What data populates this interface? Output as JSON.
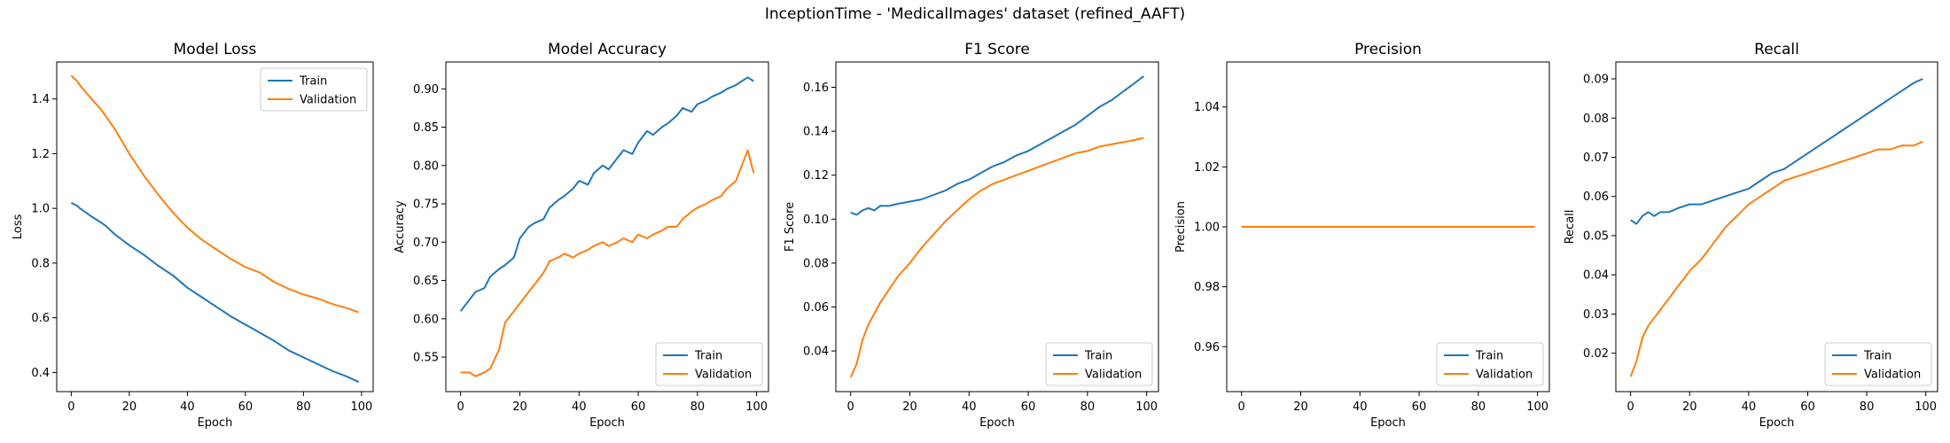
{
  "figure_title": "InceptionTime - 'MedicalImages' dataset (refined_AAFT)",
  "colors": {
    "train": "#1f77b4",
    "validation": "#ff7f0e"
  },
  "chart_data": [
    {
      "type": "line",
      "title": "Model Loss",
      "xlabel": "Epoch",
      "ylabel": "Loss",
      "xlim": [
        -5,
        104
      ],
      "ylim": [
        0.33,
        1.535
      ],
      "xticks": [
        0,
        20,
        40,
        60,
        80,
        100
      ],
      "yticks": [
        0.4,
        0.6,
        0.8,
        1.0,
        1.2,
        1.4
      ],
      "legend_position": "upper right",
      "x_points": [
        0,
        2,
        3,
        5,
        7,
        10,
        12,
        15,
        20,
        25,
        30,
        35,
        40,
        45,
        50,
        55,
        60,
        65,
        70,
        75,
        80,
        85,
        90,
        95,
        99
      ],
      "series": [
        {
          "name": "Train",
          "color_key": "train",
          "y_points": [
            1.02,
            1.01,
            1.0,
            0.985,
            0.97,
            0.95,
            0.935,
            0.905,
            0.865,
            0.83,
            0.79,
            0.755,
            0.71,
            0.675,
            0.64,
            0.605,
            0.575,
            0.545,
            0.515,
            0.48,
            0.455,
            0.43,
            0.405,
            0.385,
            0.365
          ]
        },
        {
          "name": "Validation",
          "color_key": "validation",
          "y_points": [
            1.485,
            1.465,
            1.45,
            1.425,
            1.4,
            1.365,
            1.335,
            1.29,
            1.2,
            1.12,
            1.05,
            0.985,
            0.93,
            0.885,
            0.85,
            0.815,
            0.785,
            0.765,
            0.73,
            0.705,
            0.685,
            0.67,
            0.65,
            0.635,
            0.62
          ]
        }
      ]
    },
    {
      "type": "line",
      "title": "Model Accuracy",
      "xlabel": "Epoch",
      "ylabel": "Accuracy",
      "xlim": [
        -5,
        104
      ],
      "ylim": [
        0.505,
        0.935
      ],
      "xticks": [
        0,
        20,
        40,
        60,
        80,
        100
      ],
      "yticks": [
        0.55,
        0.6,
        0.65,
        0.7,
        0.75,
        0.8,
        0.85,
        0.9
      ],
      "legend_position": "lower right",
      "x_points": [
        0,
        3,
        5,
        8,
        10,
        13,
        15,
        18,
        20,
        23,
        25,
        28,
        30,
        33,
        35,
        38,
        40,
        43,
        45,
        48,
        50,
        53,
        55,
        58,
        60,
        63,
        65,
        68,
        70,
        73,
        75,
        78,
        80,
        83,
        85,
        88,
        90,
        93,
        95,
        97,
        99
      ],
      "series": [
        {
          "name": "Train",
          "color_key": "train",
          "y_points": [
            0.61,
            0.625,
            0.635,
            0.64,
            0.655,
            0.665,
            0.67,
            0.68,
            0.705,
            0.72,
            0.725,
            0.73,
            0.745,
            0.755,
            0.76,
            0.77,
            0.78,
            0.775,
            0.79,
            0.8,
            0.795,
            0.81,
            0.82,
            0.815,
            0.83,
            0.845,
            0.84,
            0.85,
            0.855,
            0.865,
            0.875,
            0.87,
            0.88,
            0.885,
            0.89,
            0.895,
            0.9,
            0.905,
            0.91,
            0.915,
            0.91
          ]
        },
        {
          "name": "Validation",
          "color_key": "validation",
          "y_points": [
            0.53,
            0.53,
            0.525,
            0.53,
            0.535,
            0.56,
            0.595,
            0.61,
            0.62,
            0.635,
            0.645,
            0.66,
            0.675,
            0.68,
            0.685,
            0.68,
            0.685,
            0.69,
            0.695,
            0.7,
            0.695,
            0.7,
            0.705,
            0.7,
            0.71,
            0.705,
            0.71,
            0.715,
            0.72,
            0.72,
            0.73,
            0.74,
            0.745,
            0.75,
            0.755,
            0.76,
            0.77,
            0.78,
            0.8,
            0.82,
            0.79
          ]
        }
      ]
    },
    {
      "type": "line",
      "title": "F1 Score",
      "xlabel": "Epoch",
      "ylabel": "F1 Score",
      "xlim": [
        -5,
        104
      ],
      "ylim": [
        0.0215,
        0.1715
      ],
      "xticks": [
        0,
        20,
        40,
        60,
        80,
        100
      ],
      "yticks": [
        0.04,
        0.06,
        0.08,
        0.1,
        0.12,
        0.14,
        0.16
      ],
      "legend_position": "lower right",
      "x_points": [
        0,
        2,
        4,
        6,
        8,
        10,
        13,
        16,
        20,
        24,
        28,
        32,
        36,
        40,
        44,
        48,
        52,
        56,
        60,
        64,
        68,
        72,
        76,
        80,
        84,
        88,
        92,
        96,
        99
      ],
      "series": [
        {
          "name": "Train",
          "color_key": "train",
          "y_points": [
            0.103,
            0.102,
            0.104,
            0.105,
            0.104,
            0.106,
            0.106,
            0.107,
            0.108,
            0.109,
            0.111,
            0.113,
            0.116,
            0.118,
            0.121,
            0.124,
            0.126,
            0.129,
            0.131,
            0.134,
            0.137,
            0.14,
            0.143,
            0.147,
            0.151,
            0.154,
            0.158,
            0.162,
            0.165
          ]
        },
        {
          "name": "Validation",
          "color_key": "validation",
          "y_points": [
            0.028,
            0.034,
            0.045,
            0.052,
            0.057,
            0.062,
            0.068,
            0.074,
            0.08,
            0.087,
            0.093,
            0.099,
            0.104,
            0.109,
            0.113,
            0.116,
            0.118,
            0.12,
            0.122,
            0.124,
            0.126,
            0.128,
            0.13,
            0.131,
            0.133,
            0.134,
            0.135,
            0.136,
            0.137
          ]
        }
      ]
    },
    {
      "type": "line",
      "title": "Precision",
      "xlabel": "Epoch",
      "ylabel": "Precision",
      "xlim": [
        -5,
        104
      ],
      "ylim": [
        0.945,
        1.055
      ],
      "xticks": [
        0,
        20,
        40,
        60,
        80,
        100
      ],
      "yticks": [
        0.96,
        0.98,
        1.0,
        1.02,
        1.04
      ],
      "legend_position": "lower right",
      "x_points": [
        0,
        99
      ],
      "series": [
        {
          "name": "Train",
          "color_key": "train",
          "y_points": [
            1.0,
            1.0
          ]
        },
        {
          "name": "Validation",
          "color_key": "validation",
          "y_points": [
            1.0,
            1.0
          ]
        }
      ]
    },
    {
      "type": "line",
      "title": "Recall",
      "xlabel": "Epoch",
      "ylabel": "Recall",
      "xlim": [
        -5,
        104
      ],
      "ylim": [
        0.0102,
        0.0943
      ],
      "xticks": [
        0,
        20,
        40,
        60,
        80,
        100
      ],
      "yticks": [
        0.02,
        0.03,
        0.04,
        0.05,
        0.06,
        0.07,
        0.08,
        0.09
      ],
      "legend_position": "lower right",
      "x_points": [
        0,
        2,
        4,
        6,
        8,
        10,
        13,
        16,
        20,
        24,
        28,
        32,
        36,
        40,
        44,
        48,
        52,
        56,
        60,
        64,
        68,
        72,
        76,
        80,
        84,
        88,
        92,
        96,
        99
      ],
      "series": [
        {
          "name": "Train",
          "color_key": "train",
          "y_points": [
            0.054,
            0.053,
            0.055,
            0.056,
            0.055,
            0.056,
            0.056,
            0.057,
            0.058,
            0.058,
            0.059,
            0.06,
            0.061,
            0.062,
            0.064,
            0.066,
            0.067,
            0.069,
            0.071,
            0.073,
            0.075,
            0.077,
            0.079,
            0.081,
            0.083,
            0.085,
            0.087,
            0.089,
            0.09
          ]
        },
        {
          "name": "Validation",
          "color_key": "validation",
          "y_points": [
            0.014,
            0.018,
            0.024,
            0.027,
            0.029,
            0.031,
            0.034,
            0.037,
            0.041,
            0.044,
            0.048,
            0.052,
            0.055,
            0.058,
            0.06,
            0.062,
            0.064,
            0.065,
            0.066,
            0.067,
            0.068,
            0.069,
            0.07,
            0.071,
            0.072,
            0.072,
            0.073,
            0.073,
            0.074
          ]
        }
      ]
    }
  ]
}
